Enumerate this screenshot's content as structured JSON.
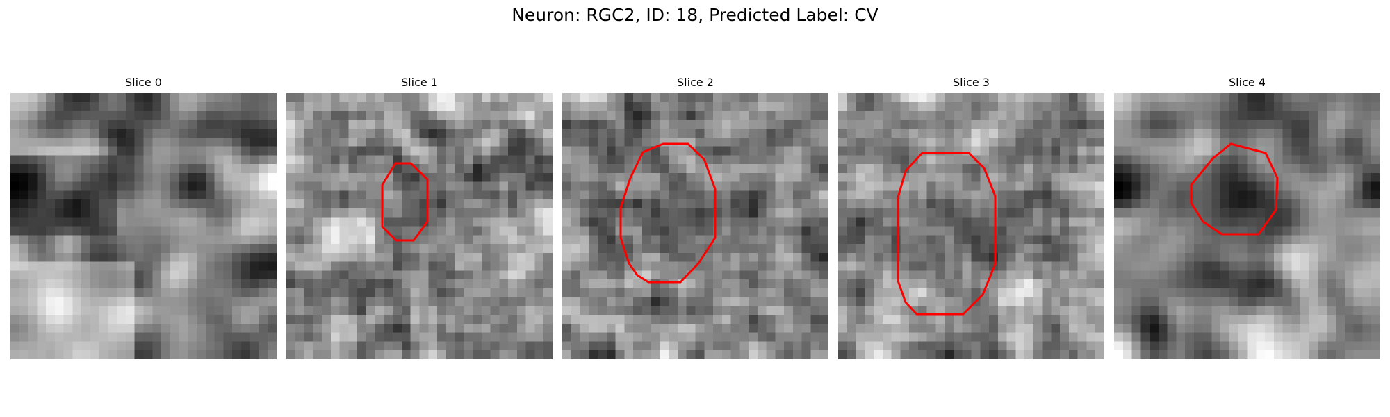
{
  "figure": {
    "title": "Neuron: RGC2, ID: 18, Predicted Label: CV"
  },
  "colors": {
    "contour": "#ff0000",
    "background": "#ffffff"
  },
  "panels": [
    {
      "title": "Slice 0",
      "has_contour": false,
      "texture": "smooth-blobs"
    },
    {
      "title": "Slice 1",
      "has_contour": true,
      "texture": "noisy-dark-center"
    },
    {
      "title": "Slice 2",
      "has_contour": true,
      "texture": "noisy-dark-center"
    },
    {
      "title": "Slice 3",
      "has_contour": true,
      "texture": "noisy-dark-center"
    },
    {
      "title": "Slice 4",
      "has_contour": true,
      "texture": "smooth-dark-ring"
    }
  ]
}
